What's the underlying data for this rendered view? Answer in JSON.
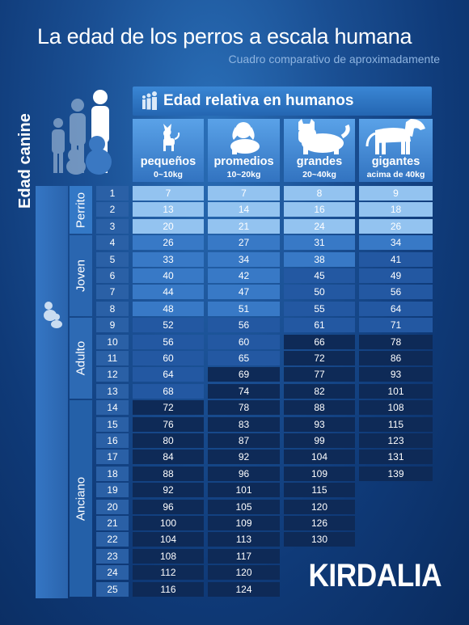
{
  "header": {
    "title": "La edad de los perros a escala humana",
    "subtitle": "Cuadro comparativo de aproximadamente"
  },
  "relative_header": "Edad relativa en humanos",
  "canine_header": "Edad canine",
  "brand": "KIRDALIA",
  "colors": {
    "background": "#114183",
    "header_blue": "#3a86d4",
    "light_cell": "#93c3f0",
    "dark_cell": "#0e2a57"
  },
  "chart_data": {
    "type": "table",
    "title": "La edad de los perros a escala humana",
    "columns": [
      {
        "name": "pequeños",
        "weight": "0~10kg",
        "icon": "small-dog-icon",
        "values": [
          7,
          13,
          20,
          26,
          33,
          40,
          44,
          48,
          52,
          56,
          60,
          64,
          68,
          72,
          76,
          80,
          84,
          88,
          92,
          96,
          100,
          104,
          108,
          112,
          116
        ]
      },
      {
        "name": "promedios",
        "weight": "10~20kg",
        "icon": "medium-dog-icon",
        "values": [
          7,
          14,
          21,
          27,
          34,
          42,
          47,
          51,
          56,
          60,
          65,
          69,
          74,
          78,
          83,
          87,
          92,
          96,
          101,
          105,
          109,
          113,
          117,
          120,
          124
        ]
      },
      {
        "name": "grandes",
        "weight": "20~40kg",
        "icon": "large-dog-icon",
        "values": [
          8,
          16,
          24,
          31,
          38,
          45,
          50,
          55,
          61,
          66,
          72,
          77,
          82,
          88,
          93,
          99,
          104,
          109,
          115,
          120,
          126,
          130
        ]
      },
      {
        "name": "gigantes",
        "weight": "acima de 40kg",
        "icon": "giant-dog-icon",
        "values": [
          9,
          18,
          26,
          34,
          41,
          49,
          56,
          64,
          71,
          78,
          86,
          93,
          101,
          108,
          115,
          123,
          131,
          139
        ]
      }
    ],
    "dog_ages": [
      "1",
      "2",
      "3",
      "4",
      "5",
      "6",
      "7",
      "8",
      "9",
      "10",
      "11",
      "12",
      "13",
      "14",
      "15",
      "16",
      "17",
      "18",
      "19",
      "20",
      "21",
      "22",
      "23",
      "24",
      "25"
    ],
    "stages": [
      {
        "label": "Perrito",
        "from": 1,
        "to": 3
      },
      {
        "label": "Joven",
        "from": 4,
        "to": 8
      },
      {
        "label": "Adulto",
        "from": 9,
        "to": 13
      },
      {
        "label": "Anciano",
        "from": 14,
        "to": 25
      }
    ]
  }
}
